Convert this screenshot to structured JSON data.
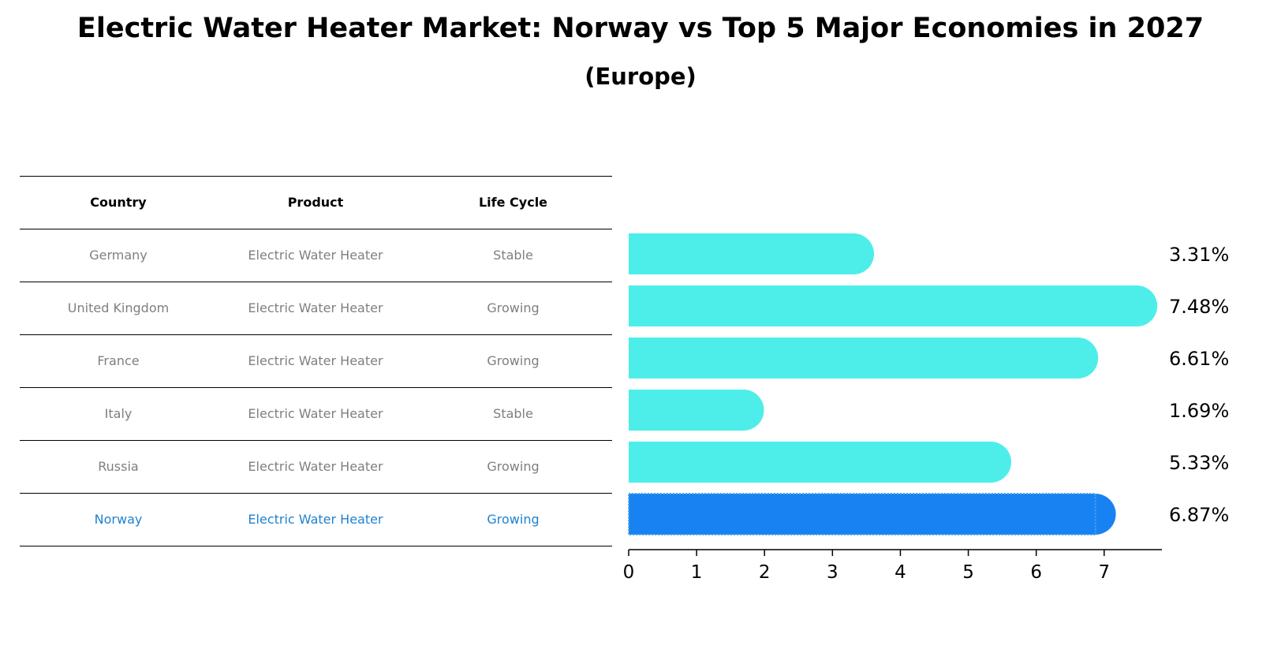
{
  "title": "Electric Water Heater Market: Norway vs Top 5 Major Economies in 2027",
  "subtitle": "(Europe)",
  "table": {
    "headers": [
      "Country",
      "Product",
      "Life Cycle"
    ],
    "rows": [
      [
        "Germany",
        "Electric Water Heater",
        "Stable"
      ],
      [
        "United Kingdom",
        "Electric Water Heater",
        "Growing"
      ],
      [
        "France",
        "Electric Water Heater",
        "Growing"
      ],
      [
        "Italy",
        "Electric Water Heater",
        "Stable"
      ],
      [
        "Russia",
        "Electric Water Heater",
        "Growing"
      ],
      [
        "Norway",
        "Electric Water Heater",
        "Growing"
      ]
    ]
  },
  "chart_data": {
    "type": "bar",
    "orientation": "horizontal",
    "categories": [
      "Germany",
      "United Kingdom",
      "France",
      "Italy",
      "Russia",
      "Norway"
    ],
    "values": [
      3.31,
      7.48,
      6.61,
      1.69,
      5.33,
      6.87
    ],
    "value_labels": [
      "3.31%",
      "7.48%",
      "6.61%",
      "1.69%",
      "5.33%",
      "6.87%"
    ],
    "highlight": "Norway",
    "xlim": [
      0,
      7.85
    ],
    "xticks": [
      0,
      1,
      2,
      3,
      4,
      5,
      6,
      7
    ],
    "colors": {
      "default": "#4deeea",
      "highlight": "#1982f2"
    }
  }
}
